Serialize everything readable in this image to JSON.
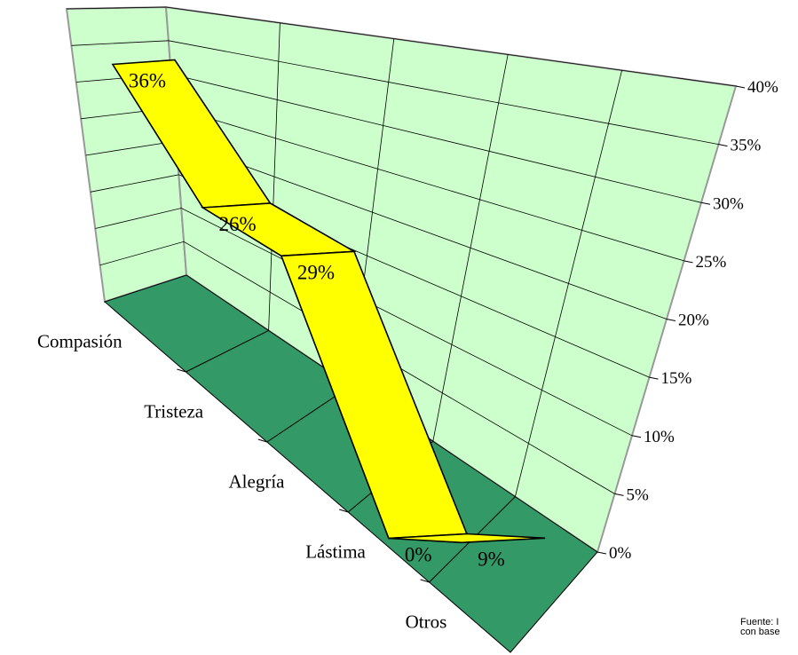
{
  "colors": {
    "wall": "#ccffcc",
    "floor": "#339966",
    "ribbon": "#ffff00",
    "grid": "#000000"
  },
  "chart_data": {
    "type": "line",
    "style": "3d-ribbon",
    "categories": [
      "Compasión",
      "Tristeza",
      "Alegría",
      "Lástima",
      "Otros"
    ],
    "series": [
      {
        "values": [
          36,
          26,
          29,
          0,
          9
        ]
      }
    ],
    "data_labels": [
      "36%",
      "26%",
      "29%",
      "0%",
      "9%"
    ],
    "y_ticks": [
      "0%",
      "5%",
      "10%",
      "15%",
      "20%",
      "25%",
      "30%",
      "35%",
      "40%"
    ],
    "ylim": [
      0,
      40
    ],
    "grid": true
  },
  "source_note": {
    "line1": "Fuente: I",
    "line2": "con base"
  }
}
